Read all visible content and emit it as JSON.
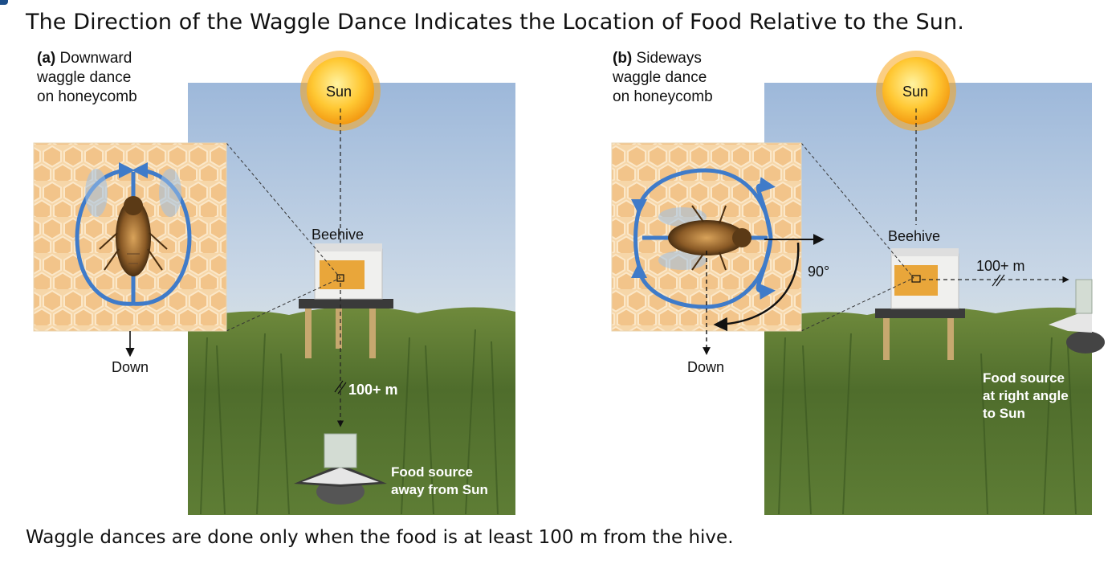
{
  "title": "The Direction of the Waggle Dance Indicates the Location of Food Relative to the Sun.",
  "footer": "Waggle dances are done only when the food is at least 100 m from the hive.",
  "panel_a": {
    "letter": "(a)",
    "label_line1": "Downward",
    "label_line2": "waggle dance",
    "label_line3": "on honeycomb",
    "sun": "Sun",
    "beehive": "Beehive",
    "down": "Down",
    "distance": "100+ m",
    "food_line1": "Food source",
    "food_line2": "away from Sun"
  },
  "panel_b": {
    "letter": "(b)",
    "label_line1": "Sideways",
    "label_line2": "waggle dance",
    "label_line3": "on honeycomb",
    "sun": "Sun",
    "beehive": "Beehive",
    "down": "Down",
    "angle": "90°",
    "distance": "100+ m",
    "food_line1": "Food source",
    "food_line2": "at right angle",
    "food_line3": "to Sun"
  }
}
